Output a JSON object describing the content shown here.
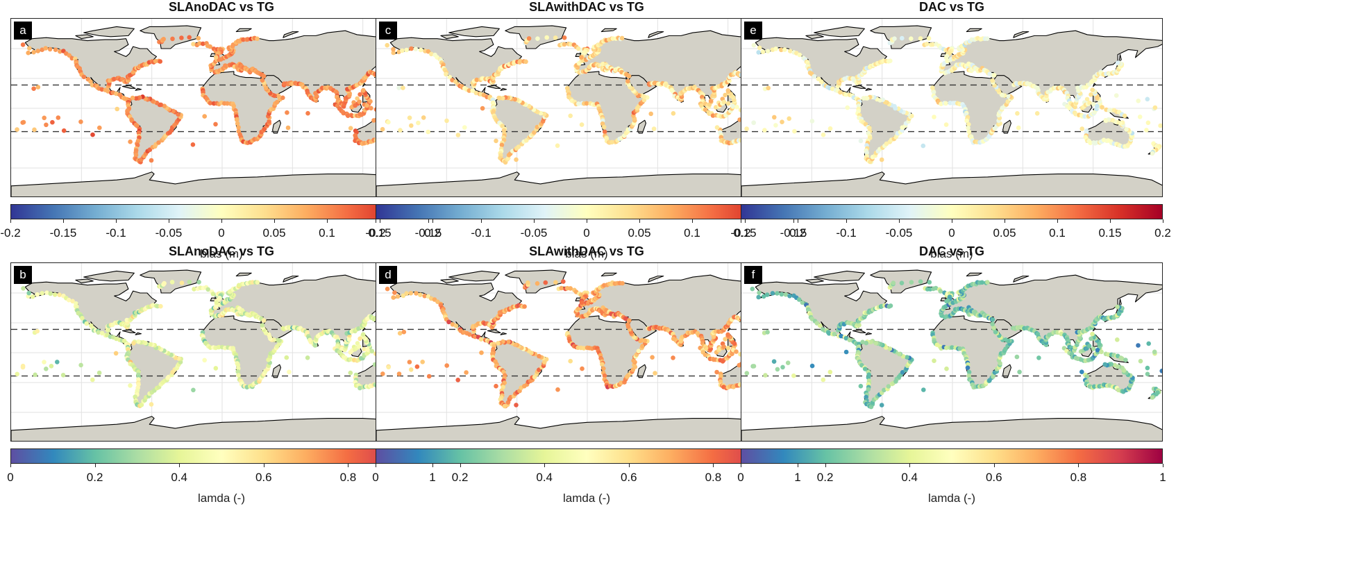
{
  "panels": [
    {
      "label": "a",
      "title": "SLAnoDAC vs TG",
      "cbar": "bias",
      "seed": 11,
      "mode": "pos"
    },
    {
      "label": "c",
      "title": "SLAwithDAC vs TG",
      "cbar": "bias",
      "seed": 23,
      "mode": "mixed"
    },
    {
      "label": "e",
      "title": "DAC vs TG",
      "cbar": "bias",
      "seed": 37,
      "mode": "neg"
    },
    {
      "label": "b",
      "title": "SLAnoDAC vs TG",
      "cbar": "lamda",
      "seed": 41,
      "mode": "lmid"
    },
    {
      "label": "d",
      "title": "SLAwithDAC vs TG",
      "cbar": "lamda",
      "seed": 53,
      "mode": "lhigh"
    },
    {
      "label": "f",
      "title": "DAC vs TG",
      "cbar": "lamda",
      "seed": 67,
      "mode": "llow"
    }
  ],
  "colorbars": {
    "bias": {
      "label": "bias (m)",
      "ticks": [
        "-0.2",
        "-0.15",
        "-0.1",
        "-0.05",
        "0",
        "0.05",
        "0.1",
        "0.15",
        "0.2"
      ],
      "colors": [
        "#313695",
        "#4575b4",
        "#74add1",
        "#abd9e9",
        "#e0f3f8",
        "#ffffbf",
        "#fee090",
        "#fdae61",
        "#f46d43",
        "#d73027",
        "#a50026"
      ]
    },
    "lamda": {
      "label": "lamda (-)",
      "ticks": [
        "0",
        "0.2",
        "0.4",
        "0.6",
        "0.8",
        "1"
      ],
      "colors": [
        "#5e4fa2",
        "#3288bd",
        "#66c2a5",
        "#abdda4",
        "#e6f598",
        "#ffffbf",
        "#fee08b",
        "#fdae61",
        "#f46d43",
        "#d53e4f",
        "#9e0142"
      ]
    }
  },
  "style": {
    "land": "#d3d1c7",
    "coast": "#000000",
    "grid": "#e2e2e2",
    "dash": "#333333"
  }
}
